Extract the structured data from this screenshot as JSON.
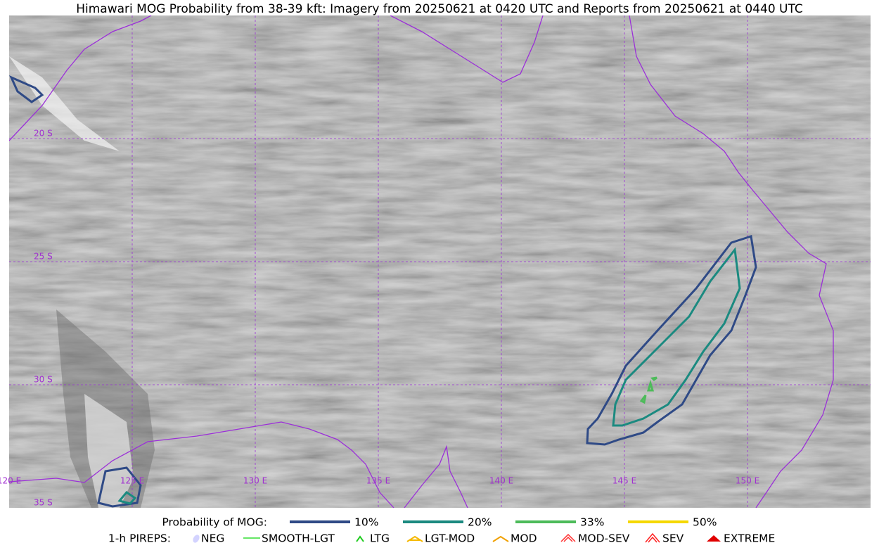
{
  "header": {
    "title": "Himawari MOG Probability from 38-39 kft: Imagery from 20250621 at 0420 UTC and Reports from 20250621 at 0440 UTC"
  },
  "map": {
    "lat_labels": [
      "20 S",
      "25 S",
      "30 S",
      "35 S"
    ],
    "lon_labels": [
      "120 E",
      "125 E",
      "130 E",
      "135 E",
      "140 E",
      "145 E",
      "150 E"
    ]
  },
  "legend": {
    "probability": {
      "label": "Probability of MOG:",
      "items": [
        {
          "label": "10%",
          "color": "#2f4a86"
        },
        {
          "label": "20%",
          "color": "#1b8a80"
        },
        {
          "label": "33%",
          "color": "#4dbb5a"
        },
        {
          "label": "50%",
          "color": "#f5d800"
        }
      ]
    },
    "pireps": {
      "label": "1-h PIREPS:",
      "items": [
        {
          "label": "NEG",
          "color": "#c8c8ff"
        },
        {
          "label": "SMOOTH-LGT",
          "color": "#33dd33"
        },
        {
          "label": "LTG",
          "color": "#22cc22"
        },
        {
          "label": "LGT-MOD",
          "color": "#f5b800"
        },
        {
          "label": "MOD",
          "color": "#f0a000"
        },
        {
          "label": "MOD-SEV",
          "color": "#ff3030"
        },
        {
          "label": "SEV",
          "color": "#ff2020"
        },
        {
          "label": "EXTREME",
          "color": "#e00000"
        }
      ]
    }
  }
}
